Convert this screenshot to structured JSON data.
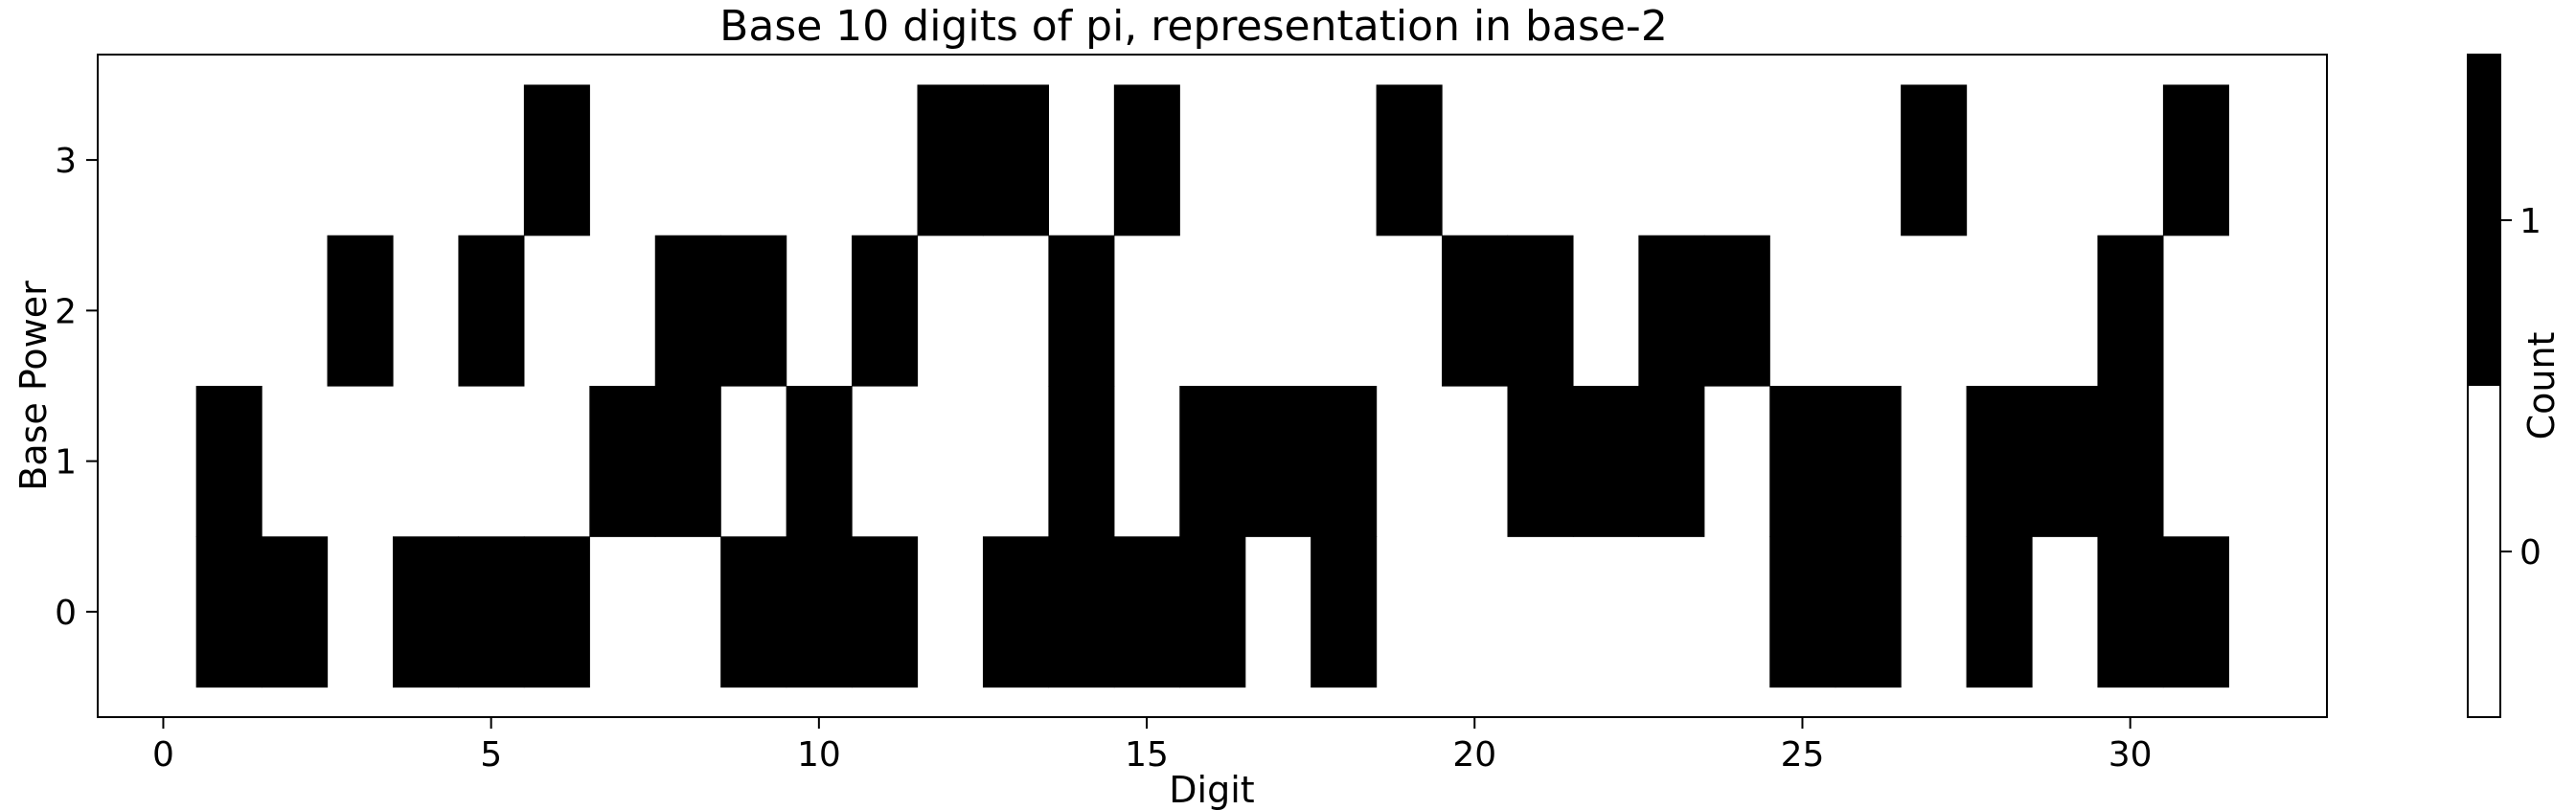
{
  "chart_data": {
    "type": "heatmap",
    "title": "Base 10 digits of pi, representation in base-2",
    "xlabel": "Digit",
    "ylabel": "Base Power",
    "x_ticks": [
      0,
      5,
      10,
      15,
      20,
      25,
      30
    ],
    "y_ticks": [
      0,
      1,
      2,
      3
    ],
    "xlim": [
      -1,
      33
    ],
    "ylim": [
      -0.7,
      3.7
    ],
    "x": [
      0,
      1,
      2,
      3,
      4,
      5,
      6,
      7,
      8,
      9,
      10,
      11,
      12,
      13,
      14,
      15,
      16,
      17,
      18,
      19,
      20,
      21,
      22,
      23,
      24,
      25,
      26,
      27,
      28,
      29,
      30,
      31
    ],
    "y": [
      0,
      1,
      2,
      3
    ],
    "values": [
      [
        0,
        1,
        1,
        0,
        1,
        1,
        1,
        0,
        0,
        1,
        1,
        1,
        0,
        1,
        1,
        1,
        1,
        0,
        1,
        0,
        0,
        0,
        0,
        0,
        0,
        1,
        1,
        0,
        1,
        0,
        1,
        1
      ],
      [
        0,
        1,
        0,
        0,
        0,
        0,
        0,
        1,
        1,
        0,
        1,
        0,
        0,
        0,
        1,
        0,
        1,
        1,
        1,
        0,
        0,
        1,
        1,
        1,
        0,
        1,
        1,
        0,
        1,
        1,
        1,
        0
      ],
      [
        0,
        0,
        0,
        1,
        0,
        1,
        0,
        0,
        1,
        1,
        0,
        1,
        0,
        0,
        1,
        0,
        0,
        0,
        0,
        0,
        1,
        1,
        0,
        1,
        1,
        0,
        0,
        0,
        0,
        0,
        1,
        0
      ],
      [
        0,
        0,
        0,
        0,
        0,
        0,
        1,
        0,
        0,
        0,
        0,
        0,
        1,
        1,
        0,
        1,
        0,
        0,
        0,
        1,
        0,
        0,
        0,
        0,
        0,
        0,
        0,
        1,
        0,
        0,
        0,
        1
      ]
    ],
    "colors": {
      "0": "#ffffff",
      "1": "#000000"
    },
    "colorbar": {
      "label": "Count",
      "ticks": [
        "0",
        "1"
      ]
    },
    "grid": false
  }
}
